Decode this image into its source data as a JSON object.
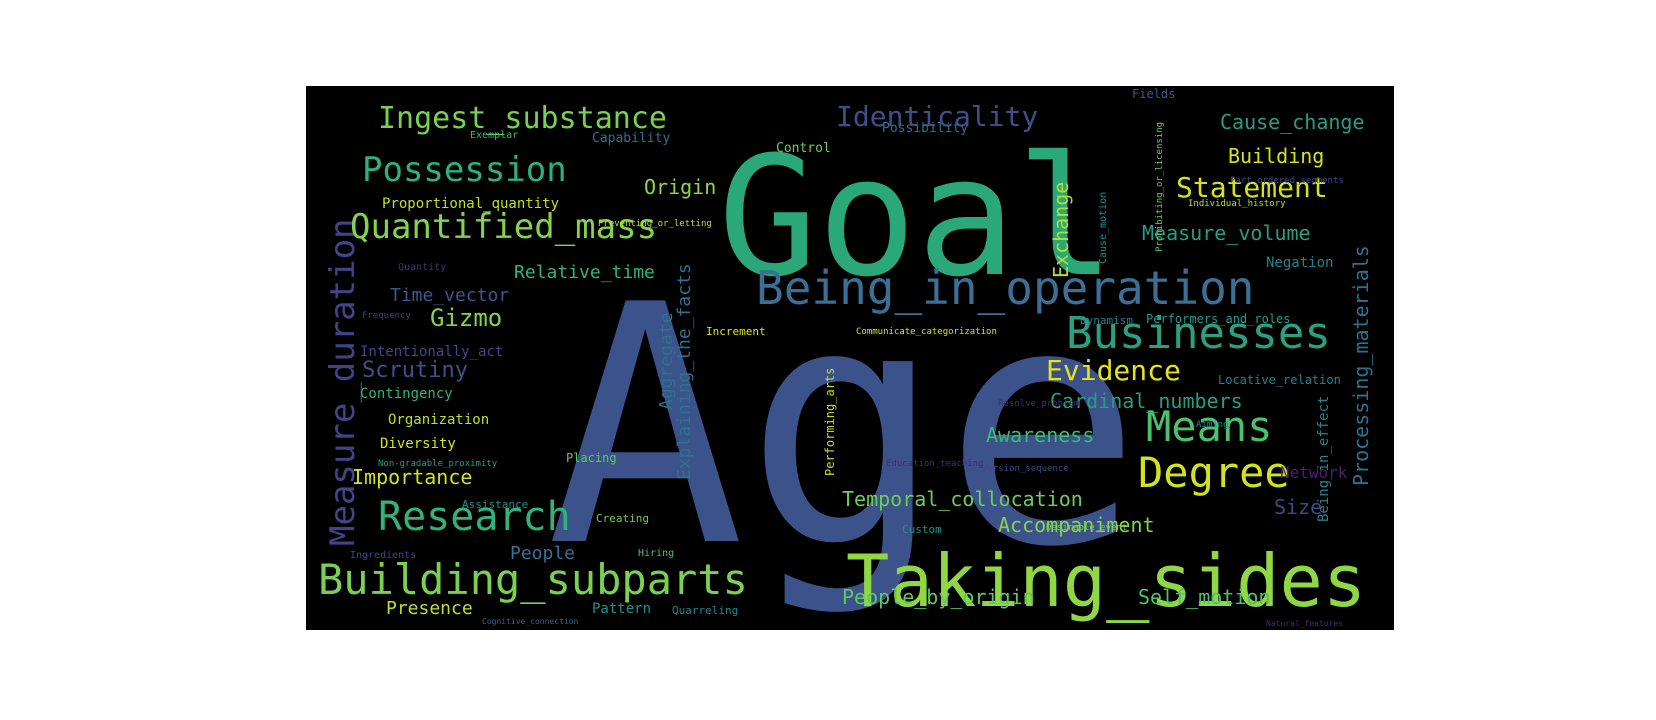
{
  "image": {
    "background": "#000000",
    "page_background": "#ffffff",
    "colormap": "viridis"
  },
  "words": [
    {
      "text": "Age",
      "color": "#3b528b"
    },
    {
      "text": "Goal",
      "color": "#2aa87a"
    },
    {
      "text": "Taking_sides",
      "color": "#8fd744"
    },
    {
      "text": "Being_in_operation",
      "color": "#3b6f95"
    },
    {
      "text": "Businesses",
      "color": "#2aa081"
    },
    {
      "text": "Building_subparts",
      "color": "#7ad151"
    },
    {
      "text": "Measure_duration",
      "color": "#414487"
    },
    {
      "text": "Research",
      "color": "#2fb47c"
    },
    {
      "text": "Degree",
      "color": "#d2e21b"
    },
    {
      "text": "Quantified_mass",
      "color": "#84d44b"
    },
    {
      "text": "Possession",
      "color": "#2db27d"
    },
    {
      "text": "Means",
      "color": "#4ac16d"
    },
    {
      "text": "Ingest_substance",
      "color": "#7ad151"
    },
    {
      "text": "Identicality",
      "color": "#3f4f8a"
    },
    {
      "text": "Statement",
      "color": "#d8e219"
    },
    {
      "text": "Evidence",
      "color": "#e5e419"
    },
    {
      "text": "Gizmo",
      "color": "#84d44b"
    },
    {
      "text": "Temporal_collocation",
      "color": "#6ccd5a"
    },
    {
      "text": "Cardinal_numbers",
      "color": "#2a9b84"
    },
    {
      "text": "People_by_origin",
      "color": "#5ec962"
    },
    {
      "text": "Self_motion",
      "color": "#4ac16d"
    },
    {
      "text": "Accompaniment",
      "color": "#86d549"
    },
    {
      "text": "Awareness",
      "color": "#3bbb75"
    },
    {
      "text": "Importance",
      "color": "#d2e21b"
    },
    {
      "text": "Scrutiny",
      "color": "#3b528b"
    },
    {
      "text": "Measure_volume",
      "color": "#2a9b84"
    },
    {
      "text": "Building",
      "color": "#d8e219"
    },
    {
      "text": "Cause_change",
      "color": "#2a9b84"
    },
    {
      "text": "Origin",
      "color": "#8fd744"
    },
    {
      "text": "Exchange",
      "color": "#b5de2b"
    },
    {
      "text": "Processing_materials",
      "color": "#2c728e"
    },
    {
      "text": "Aggregate",
      "color": "#2c728e"
    },
    {
      "text": "Explaining_the_facts",
      "color": "#2c728e"
    },
    {
      "text": "Relative_time",
      "color": "#2fb47c"
    },
    {
      "text": "Time_vector",
      "color": "#38598c"
    },
    {
      "text": "Presence",
      "color": "#c2df23"
    },
    {
      "text": "People",
      "color": "#3b6f95"
    },
    {
      "text": "Pattern",
      "color": "#21918c"
    },
    {
      "text": "Size",
      "color": "#3e4989"
    },
    {
      "text": "Negation",
      "color": "#25838e"
    },
    {
      "text": "Being_in_effect",
      "color": "#25838e"
    },
    {
      "text": "Network",
      "color": "#482173"
    },
    {
      "text": "Proportional_quantity",
      "color": "#c2df23"
    },
    {
      "text": "Capability",
      "color": "#2c728e"
    },
    {
      "text": "Possibility",
      "color": "#2c728e"
    },
    {
      "text": "Control",
      "color": "#6ccd5a"
    },
    {
      "text": "Fields",
      "color": "#375b8d"
    },
    {
      "text": "Exemplar",
      "color": "#35b779"
    },
    {
      "text": "Intentionally_act",
      "color": "#3f4a8a"
    },
    {
      "text": "Contingency",
      "color": "#2fb47c"
    },
    {
      "text": "Organization",
      "color": "#c2df23"
    },
    {
      "text": "Diversity",
      "color": "#d8e219"
    },
    {
      "text": "Placing",
      "color": "#5ec962"
    },
    {
      "text": "Performing_arts",
      "color": "#c2df23"
    },
    {
      "text": "Performers_and_roles",
      "color": "#1f9e89"
    },
    {
      "text": "Locative_relation",
      "color": "#25838e"
    },
    {
      "text": "Assistance",
      "color": "#21918c"
    },
    {
      "text": "Creating",
      "color": "#6ccd5a"
    },
    {
      "text": "Custom",
      "color": "#21918c"
    },
    {
      "text": "Quarreling",
      "color": "#25838e"
    },
    {
      "text": "Ingredients",
      "color": "#414487"
    },
    {
      "text": "Hiring",
      "color": "#4ac16d"
    },
    {
      "text": "Increment",
      "color": "#d8e219"
    },
    {
      "text": "Dynamism",
      "color": "#26828e"
    },
    {
      "text": "Quantity",
      "color": "#472c7a"
    },
    {
      "text": "Frequency",
      "color": "#443a83"
    },
    {
      "text": "Cause_motion",
      "color": "#21918c"
    },
    {
      "text": "Prohibiting_or_licensing",
      "color": "#6ccd5a"
    },
    {
      "text": "Individual_history",
      "color": "#b5de2b"
    },
    {
      "text": "Part_ordered_segments",
      "color": "#3e4989"
    },
    {
      "text": "Preventing_or_letting",
      "color": "#c2df23"
    },
    {
      "text": "Communicate_categorization",
      "color": "#d8e219"
    },
    {
      "text": "Resolve_problem",
      "color": "#482878"
    },
    {
      "text": "Education_teaching",
      "color": "#482878"
    },
    {
      "text": "Version_sequence",
      "color": "#3e4989"
    },
    {
      "text": "Aiming",
      "color": "#26828e"
    },
    {
      "text": "Desirable_event",
      "color": "#6ccd5a"
    },
    {
      "text": "Non-gradable_proximity",
      "color": "#1f9e89"
    },
    {
      "text": "Cognitive_connection",
      "color": "#31688e"
    },
    {
      "text": "Natural_features",
      "color": "#482878"
    }
  ]
}
